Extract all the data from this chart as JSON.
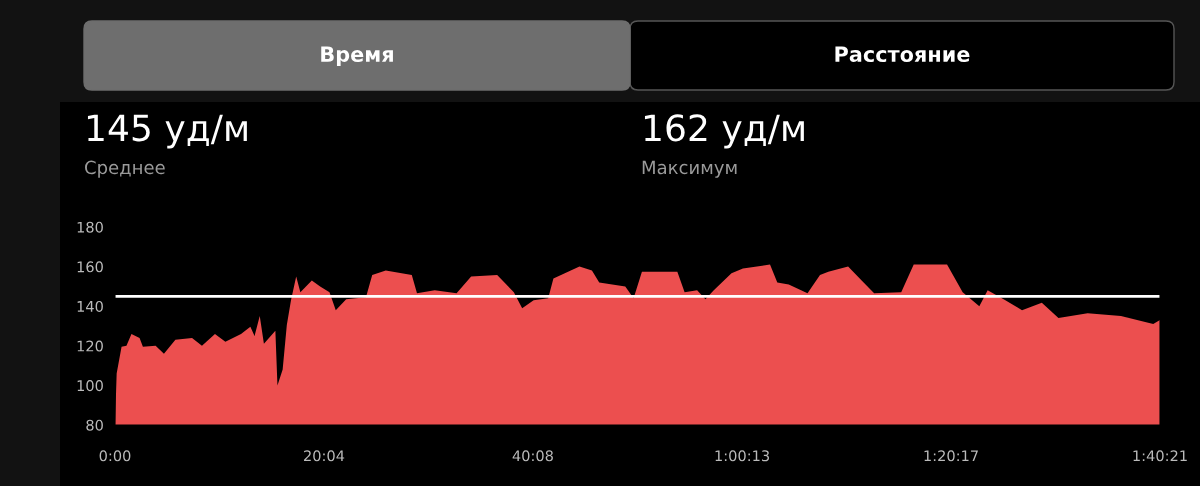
{
  "chart_data": {
    "type": "area",
    "annotations": [
      "Время",
      "Расстояние",
      "145 уд/м",
      "Среднее",
      "162 уд/м",
      "Максимум"
    ],
    "x": [
      0,
      0.16,
      0.63,
      1.1,
      1.58,
      2.36,
      2.68,
      3.9,
      4.7,
      5.8,
      7.4,
      8.35,
      9.6,
      10.6,
      12.1,
      13.0,
      13.4,
      13.9,
      14.3,
      15.4,
      15.6,
      16.1,
      16.5,
      16.9,
      17.4,
      17.8,
      18.9,
      19.7,
      20.6,
      21.2,
      22.2,
      24.1,
      24.7,
      26.0,
      28.5,
      29.0,
      30.7,
      32.8,
      34.2,
      36.7,
      38.3,
      39.1,
      40.2,
      41.6,
      42.1,
      44.6,
      45.8,
      46.5,
      49.0,
      49.8,
      50.6,
      52.8,
      54.0,
      54.7,
      55.9,
      56.7,
      57.5,
      59.2,
      60.3,
      62.9,
      63.6,
      64.7,
      66.5,
      67.7,
      68.5,
      70.4,
      71.7,
      72.9,
      75.5,
      76.7,
      79.9,
      81.4,
      83.0,
      83.8,
      85.5,
      87.1,
      89.0,
      90.6,
      93.4,
      96.6,
      99.7,
      100.35
    ],
    "series": [
      {
        "color": "#ec4f4f",
        "values": [
          80,
          106,
          119.5,
          120,
          126,
          124,
          119.5,
          120,
          116,
          123,
          124,
          120,
          126,
          122,
          126,
          129.6,
          125,
          135,
          121,
          127.6,
          100,
          108,
          130.5,
          143,
          155,
          147,
          153,
          150,
          147,
          138,
          143.5,
          144.5,
          155.7,
          158,
          155.7,
          146.5,
          148,
          146.5,
          155,
          155.7,
          147,
          139,
          143,
          144,
          154,
          160,
          158,
          152,
          150,
          144,
          157.4,
          157.4,
          157.4,
          147,
          148,
          143.5,
          148,
          156.6,
          159,
          161,
          152,
          151,
          146.5,
          155.7,
          157.4,
          160,
          153,
          146.5,
          147,
          161,
          161,
          147,
          140,
          148,
          143,
          138,
          141.8,
          134,
          136.4,
          135,
          131,
          133
        ]
      }
    ],
    "xlim": [
      0,
      100.35
    ],
    "xticks": [
      {
        "value": 0,
        "label": "0:00"
      },
      {
        "value": 20.067,
        "label": "20:04"
      },
      {
        "value": 40.133,
        "label": "40:08"
      },
      {
        "value": 60.217,
        "label": "1:00:13"
      },
      {
        "value": 80.283,
        "label": "1:20:17"
      },
      {
        "value": 100.35,
        "label": "1:40:21"
      }
    ],
    "ylim": [
      80,
      180
    ],
    "yticks": [
      80,
      100,
      120,
      140,
      160,
      180
    ],
    "ref_lines": [
      {
        "axis": "y",
        "value": 145,
        "color": "#ffffff"
      }
    ],
    "grid": false,
    "legend": false
  }
}
